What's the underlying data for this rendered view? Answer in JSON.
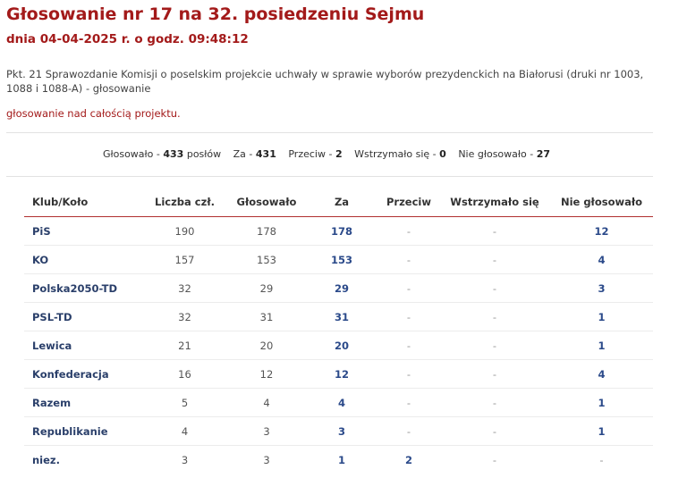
{
  "header": {
    "title": "Głosowanie nr 17 na 32. posiedzeniu Sejmu",
    "subtitle": "dnia 04-04-2025 r. o godz. 09:48:12"
  },
  "description": "Pkt. 21 Sprawozdanie Komisji o poselskim projekcie uchwały w sprawie wyborów prezydenckich na Białorusi (druki nr 1003, 1088 i 1088-A) - głosowanie",
  "vote_type": "głosowanie nad całością projektu.",
  "summary": {
    "voted_label": "Głosowało - ",
    "voted_value": "433",
    "voted_suffix": " posłów",
    "za_label": "Za - ",
    "za_value": "431",
    "przeciw_label": "Przeciw - ",
    "przeciw_value": "2",
    "abstain_label": "Wstrzymało się - ",
    "abstain_value": "0",
    "not_voted_label": "Nie głosowało - ",
    "not_voted_value": "27"
  },
  "table": {
    "headers": [
      "Klub/Koło",
      "Liczba czł.",
      "Głosowało",
      "Za",
      "Przeciw",
      "Wstrzymało się",
      "Nie głosowało"
    ],
    "rows": [
      [
        "PiS",
        "190",
        "178",
        "178",
        "-",
        "-",
        "12"
      ],
      [
        "KO",
        "157",
        "153",
        "153",
        "-",
        "-",
        "4"
      ],
      [
        "Polska2050-TD",
        "32",
        "29",
        "29",
        "-",
        "-",
        "3"
      ],
      [
        "PSL-TD",
        "32",
        "31",
        "31",
        "-",
        "-",
        "1"
      ],
      [
        "Lewica",
        "21",
        "20",
        "20",
        "-",
        "-",
        "1"
      ],
      [
        "Konfederacja",
        "16",
        "12",
        "12",
        "-",
        "-",
        "4"
      ],
      [
        "Razem",
        "5",
        "4",
        "4",
        "-",
        "-",
        "1"
      ],
      [
        "Republikanie",
        "4",
        "3",
        "3",
        "-",
        "-",
        "1"
      ],
      [
        "niez.",
        "3",
        "3",
        "1",
        "2",
        "-",
        "-"
      ]
    ]
  },
  "colors": {
    "title": "#a31a1a",
    "header_rule": "#b03030",
    "club_link": "#2a3f6a",
    "value_link": "#2b4a8a"
  }
}
